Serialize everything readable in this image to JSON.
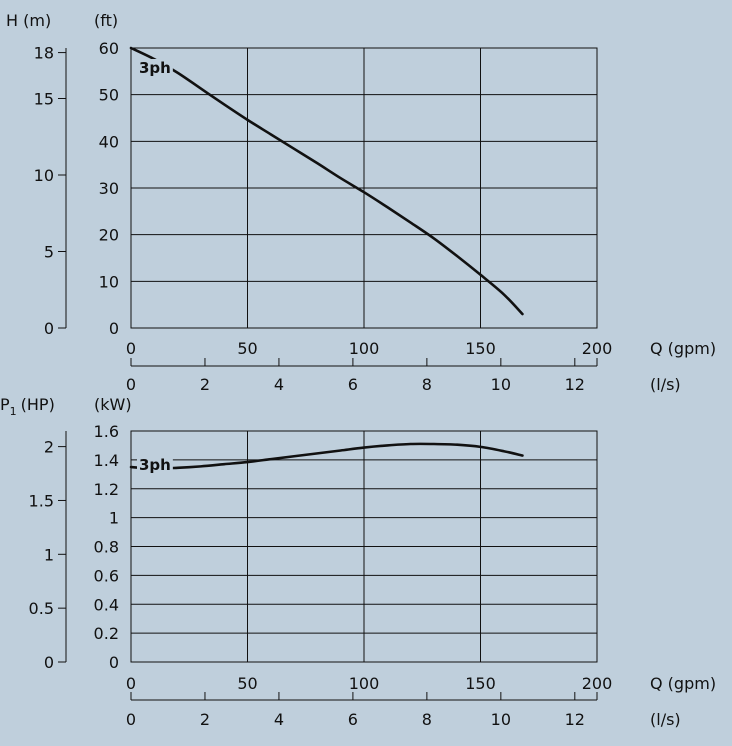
{
  "chart_data": [
    {
      "type": "line",
      "x_unit_label": "Q (gpm)",
      "x_secondary_unit_label": "(l/s)",
      "y_unit_label": "(ft)",
      "y_secondary_unit_label": "H (m)",
      "xlim": [
        0,
        200
      ],
      "ylim": [
        0,
        60
      ],
      "x_secondary_lim": [
        0,
        12.6
      ],
      "y_secondary_lim": [
        0,
        18.3
      ],
      "x_ticks": [
        0,
        50,
        100,
        150,
        200
      ],
      "y_ticks": [
        0,
        10,
        20,
        30,
        40,
        50,
        60
      ],
      "x_secondary_ticks": [
        0,
        2,
        4,
        6,
        8,
        10,
        12
      ],
      "y_secondary_ticks": [
        0,
        5,
        10,
        15,
        18
      ],
      "grid": true,
      "series": [
        {
          "name": "3ph",
          "x": [
            0,
            10,
            20,
            30,
            40,
            50,
            60,
            70,
            80,
            90,
            100,
            110,
            120,
            130,
            140,
            150,
            160,
            168
          ],
          "y": [
            60,
            57.6,
            54.7,
            51.3,
            47.9,
            44.6,
            41.5,
            38.4,
            35.3,
            32.1,
            29.1,
            25.9,
            22.6,
            19.2,
            15.4,
            11.4,
            7.2,
            3
          ]
        }
      ]
    },
    {
      "type": "line",
      "x_unit_label": "Q (gpm)",
      "x_secondary_unit_label": "(l/s)",
      "y_unit_label": "(kW)",
      "y_secondary_unit_label": "P",
      "y_secondary_unit_subscript": "1",
      "y_secondary_unit_suffix": "(HP)",
      "xlim": [
        0,
        200
      ],
      "ylim": [
        0,
        1.6
      ],
      "x_secondary_lim": [
        0,
        12.6
      ],
      "y_secondary_lim": [
        0,
        2.145
      ],
      "x_ticks": [
        0,
        50,
        100,
        150,
        200
      ],
      "y_ticks": [
        0,
        0.2,
        0.4,
        0.6,
        0.8,
        1,
        1.2,
        1.4,
        1.6
      ],
      "x_secondary_ticks": [
        0,
        2,
        4,
        6,
        8,
        10,
        12
      ],
      "y_secondary_ticks": [
        0,
        0.5,
        1,
        1.5,
        2
      ],
      "grid": true,
      "series": [
        {
          "name": "3ph",
          "x": [
            0,
            10,
            20,
            30,
            40,
            50,
            60,
            70,
            80,
            90,
            100,
            110,
            120,
            130,
            140,
            150,
            160,
            168
          ],
          "y": [
            1.35,
            1.34,
            1.345,
            1.355,
            1.37,
            1.385,
            1.405,
            1.425,
            1.445,
            1.465,
            1.485,
            1.5,
            1.51,
            1.51,
            1.505,
            1.49,
            1.46,
            1.43
          ]
        }
      ]
    }
  ]
}
